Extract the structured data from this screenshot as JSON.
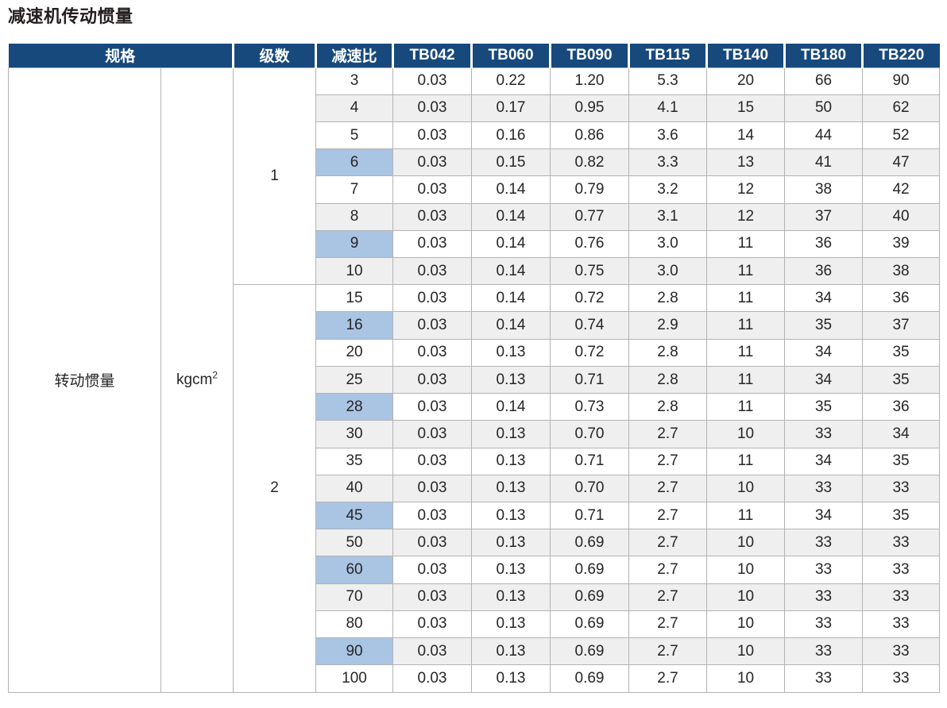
{
  "title": "减速机传动惯量",
  "colors": {
    "header_bg": "#17497d",
    "header_text": "#ffffff",
    "row_stripe": "#efefef",
    "ratio_highlight": "#aac4e3",
    "grid_border": "#b3b3b3"
  },
  "table": {
    "header": {
      "spec": "规格",
      "stages": "级数",
      "ratio": "减速比",
      "models": [
        "TB042",
        "TB060",
        "TB090",
        "TB115",
        "TB140",
        "TB180",
        "TB220"
      ]
    },
    "spec_name": "转动惯量",
    "spec_unit_base": "kgcm",
    "spec_unit_sup": "2",
    "groups": [
      {
        "stage": "1",
        "rows": [
          {
            "ratio": "3",
            "highlight": false,
            "values": [
              "0.03",
              "0.22",
              "1.20",
              "5.3",
              "20",
              "66",
              "90"
            ]
          },
          {
            "ratio": "4",
            "highlight": false,
            "values": [
              "0.03",
              "0.17",
              "0.95",
              "4.1",
              "15",
              "50",
              "62"
            ]
          },
          {
            "ratio": "5",
            "highlight": false,
            "values": [
              "0.03",
              "0.16",
              "0.86",
              "3.6",
              "14",
              "44",
              "52"
            ]
          },
          {
            "ratio": "6",
            "highlight": true,
            "values": [
              "0.03",
              "0.15",
              "0.82",
              "3.3",
              "13",
              "41",
              "47"
            ]
          },
          {
            "ratio": "7",
            "highlight": false,
            "values": [
              "0.03",
              "0.14",
              "0.79",
              "3.2",
              "12",
              "38",
              "42"
            ]
          },
          {
            "ratio": "8",
            "highlight": false,
            "values": [
              "0.03",
              "0.14",
              "0.77",
              "3.1",
              "12",
              "37",
              "40"
            ]
          },
          {
            "ratio": "9",
            "highlight": true,
            "values": [
              "0.03",
              "0.14",
              "0.76",
              "3.0",
              "11",
              "36",
              "39"
            ]
          },
          {
            "ratio": "10",
            "highlight": false,
            "values": [
              "0.03",
              "0.14",
              "0.75",
              "3.0",
              "11",
              "36",
              "38"
            ]
          }
        ]
      },
      {
        "stage": "2",
        "rows": [
          {
            "ratio": "15",
            "highlight": false,
            "values": [
              "0.03",
              "0.14",
              "0.72",
              "2.8",
              "11",
              "34",
              "36"
            ]
          },
          {
            "ratio": "16",
            "highlight": true,
            "values": [
              "0.03",
              "0.14",
              "0.74",
              "2.9",
              "11",
              "35",
              "37"
            ]
          },
          {
            "ratio": "20",
            "highlight": false,
            "values": [
              "0.03",
              "0.13",
              "0.72",
              "2.8",
              "11",
              "34",
              "35"
            ]
          },
          {
            "ratio": "25",
            "highlight": false,
            "values": [
              "0.03",
              "0.13",
              "0.71",
              "2.8",
              "11",
              "34",
              "35"
            ]
          },
          {
            "ratio": "28",
            "highlight": true,
            "values": [
              "0.03",
              "0.14",
              "0.73",
              "2.8",
              "11",
              "35",
              "36"
            ]
          },
          {
            "ratio": "30",
            "highlight": false,
            "values": [
              "0.03",
              "0.13",
              "0.70",
              "2.7",
              "10",
              "33",
              "34"
            ]
          },
          {
            "ratio": "35",
            "highlight": false,
            "values": [
              "0.03",
              "0.13",
              "0.71",
              "2.7",
              "11",
              "34",
              "35"
            ]
          },
          {
            "ratio": "40",
            "highlight": false,
            "values": [
              "0.03",
              "0.13",
              "0.70",
              "2.7",
              "10",
              "33",
              "33"
            ]
          },
          {
            "ratio": "45",
            "highlight": true,
            "values": [
              "0.03",
              "0.13",
              "0.71",
              "2.7",
              "11",
              "34",
              "35"
            ]
          },
          {
            "ratio": "50",
            "highlight": false,
            "values": [
              "0.03",
              "0.13",
              "0.69",
              "2.7",
              "10",
              "33",
              "33"
            ]
          },
          {
            "ratio": "60",
            "highlight": true,
            "values": [
              "0.03",
              "0.13",
              "0.69",
              "2.7",
              "10",
              "33",
              "33"
            ]
          },
          {
            "ratio": "70",
            "highlight": false,
            "values": [
              "0.03",
              "0.13",
              "0.69",
              "2.7",
              "10",
              "33",
              "33"
            ]
          },
          {
            "ratio": "80",
            "highlight": false,
            "values": [
              "0.03",
              "0.13",
              "0.69",
              "2.7",
              "10",
              "33",
              "33"
            ]
          },
          {
            "ratio": "90",
            "highlight": true,
            "values": [
              "0.03",
              "0.13",
              "0.69",
              "2.7",
              "10",
              "33",
              "33"
            ]
          },
          {
            "ratio": "100",
            "highlight": false,
            "values": [
              "0.03",
              "0.13",
              "0.69",
              "2.7",
              "10",
              "33",
              "33"
            ]
          }
        ]
      }
    ]
  }
}
